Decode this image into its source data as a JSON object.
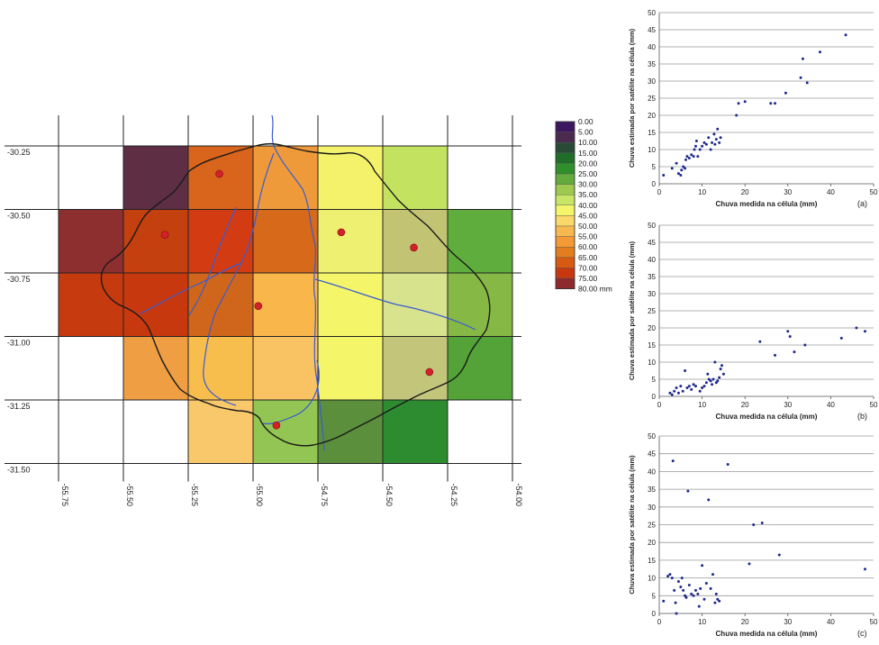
{
  "map": {
    "lat_ticks": [
      "-30.25",
      "-30.50",
      "-30.75",
      "-31.00",
      "-31.25",
      "-31.50"
    ],
    "lon_ticks": [
      "-55.75",
      "-55.50",
      "-55.25",
      "-55.00",
      "-54.75",
      "-54.50",
      "-54.25",
      "-54.00"
    ],
    "legend_values": [
      "0.00",
      "5.00",
      "10.00",
      "15.00",
      "20.00",
      "25.00",
      "30.00",
      "35.00",
      "40.00",
      "45.00",
      "50.00",
      "55.00",
      "60.00",
      "65.00",
      "70.00",
      "75.00",
      "80.00"
    ],
    "legend_unit": "mm",
    "legend_colors": [
      "#3d1660",
      "#4a2a4e",
      "#2a4a38",
      "#1f6e28",
      "#2f8f2a",
      "#62ab3c",
      "#9cc94e",
      "#c9e566",
      "#f5f56a",
      "#fbd86a",
      "#f8b850",
      "#f39a37",
      "#e27e1e",
      "#d65a12",
      "#c8380f",
      "#8e2a2e",
      "#5e2a3c"
    ],
    "cells": [
      {
        "row": 0,
        "col": 1,
        "color": "#5e2f44"
      },
      {
        "row": 0,
        "col": 2,
        "color": "#d9641b"
      },
      {
        "row": 0,
        "col": 3,
        "color": "#ef9a3a"
      },
      {
        "row": 0,
        "col": 4,
        "color": "#f4f26a"
      },
      {
        "row": 0,
        "col": 5,
        "color": "#c3e25f"
      },
      {
        "row": 1,
        "col": 0,
        "color": "#8e2f2f"
      },
      {
        "row": 1,
        "col": 1,
        "color": "#c4400f"
      },
      {
        "row": 1,
        "col": 2,
        "color": "#d33c12"
      },
      {
        "row": 1,
        "col": 3,
        "color": "#d6691a"
      },
      {
        "row": 1,
        "col": 4,
        "color": "#eef072"
      },
      {
        "row": 1,
        "col": 5,
        "color": "#c3c473"
      },
      {
        "row": 1,
        "col": 6,
        "color": "#5fae3d"
      },
      {
        "row": 2,
        "col": 0,
        "color": "#c63a0f"
      },
      {
        "row": 2,
        "col": 1,
        "color": "#c8380f"
      },
      {
        "row": 2,
        "col": 2,
        "color": "#d0661b"
      },
      {
        "row": 2,
        "col": 3,
        "color": "#f8b64b"
      },
      {
        "row": 2,
        "col": 4,
        "color": "#f5f56a"
      },
      {
        "row": 2,
        "col": 5,
        "color": "#d8e38d"
      },
      {
        "row": 2,
        "col": 6,
        "color": "#86b845"
      },
      {
        "row": 3,
        "col": 1,
        "color": "#ef9e44"
      },
      {
        "row": 3,
        "col": 2,
        "color": "#f7bd4d"
      },
      {
        "row": 3,
        "col": 3,
        "color": "#f9c262"
      },
      {
        "row": 3,
        "col": 4,
        "color": "#f5f56a"
      },
      {
        "row": 3,
        "col": 5,
        "color": "#c3c67a"
      },
      {
        "row": 3,
        "col": 6,
        "color": "#53a338"
      },
      {
        "row": 4,
        "col": 2,
        "color": "#f9c86a"
      },
      {
        "row": 4,
        "col": 3,
        "color": "#92c553"
      },
      {
        "row": 4,
        "col": 4,
        "color": "#5b8f3c"
      },
      {
        "row": 4,
        "col": 5,
        "color": "#2d8c30"
      }
    ],
    "gauges": [
      {
        "lon": -55.13,
        "lat": -30.36
      },
      {
        "lon": -55.34,
        "lat": -30.6
      },
      {
        "lon": -54.66,
        "lat": -30.59
      },
      {
        "lon": -54.38,
        "lat": -30.65
      },
      {
        "lon": -54.98,
        "lat": -30.88
      },
      {
        "lon": -54.32,
        "lat": -31.14
      },
      {
        "lon": -54.91,
        "lat": -31.35
      }
    ]
  },
  "chart_data": [
    {
      "type": "scatter",
      "panel_label": "(a)",
      "xlabel": "Chuva medida na célula (mm)",
      "ylabel": "Chuva estimada por satélite na célula (mm)",
      "xlim": [
        0,
        50
      ],
      "ylim": [
        0,
        50
      ],
      "xticks": [
        "0",
        "10",
        "20",
        "30",
        "40",
        "50"
      ],
      "yticks": [
        "0",
        "5",
        "10",
        "15",
        "20",
        "25",
        "30",
        "35",
        "40",
        "45",
        "50"
      ],
      "points": [
        [
          1,
          2.5
        ],
        [
          3,
          4.5
        ],
        [
          4,
          6
        ],
        [
          4.5,
          3
        ],
        [
          5,
          2.5
        ],
        [
          5.2,
          4
        ],
        [
          5.6,
          5
        ],
        [
          6,
          4.5
        ],
        [
          6.2,
          7
        ],
        [
          6.5,
          8
        ],
        [
          7,
          7.5
        ],
        [
          7.5,
          8.5
        ],
        [
          8,
          8
        ],
        [
          8.2,
          10
        ],
        [
          8.5,
          11
        ],
        [
          8.7,
          12.5
        ],
        [
          9,
          8
        ],
        [
          9.5,
          10
        ],
        [
          10,
          11
        ],
        [
          10.5,
          12
        ],
        [
          11,
          11.5
        ],
        [
          11.5,
          13.5
        ],
        [
          12,
          10
        ],
        [
          12.3,
          12
        ],
        [
          12.8,
          14.5
        ],
        [
          13,
          11.5
        ],
        [
          13.3,
          13
        ],
        [
          13.6,
          16
        ],
        [
          14,
          12
        ],
        [
          14.3,
          13.5
        ],
        [
          18,
          20
        ],
        [
          18.5,
          23.5
        ],
        [
          20,
          24
        ],
        [
          26,
          23.5
        ],
        [
          27,
          23.5
        ],
        [
          29.5,
          26.5
        ],
        [
          33,
          31
        ],
        [
          33.5,
          36.5
        ],
        [
          34.5,
          29.5
        ],
        [
          37.5,
          38.5
        ],
        [
          43.5,
          43.5
        ]
      ]
    },
    {
      "type": "scatter",
      "panel_label": "(b)",
      "xlabel": "Chuva medida na célula (mm)",
      "ylabel": "Chuva estimada por satélite na célula (mm)",
      "xlim": [
        0,
        50
      ],
      "ylim": [
        0,
        50
      ],
      "xticks": [
        "0",
        "10",
        "20",
        "30",
        "40",
        "50"
      ],
      "yticks": [
        "0",
        "5",
        "10",
        "15",
        "20",
        "25",
        "30",
        "35",
        "40",
        "45",
        "50"
      ],
      "points": [
        [
          2.5,
          1
        ],
        [
          3,
          0.5
        ],
        [
          3.5,
          1.5
        ],
        [
          4,
          2.5
        ],
        [
          4.5,
          1
        ],
        [
          5,
          3
        ],
        [
          5.5,
          1.5
        ],
        [
          6,
          7.5
        ],
        [
          6.5,
          2.5
        ],
        [
          7,
          3
        ],
        [
          7.5,
          2
        ],
        [
          8,
          3.5
        ],
        [
          8.5,
          3
        ],
        [
          9.5,
          1.5
        ],
        [
          10,
          2.5
        ],
        [
          10.5,
          3
        ],
        [
          11,
          4
        ],
        [
          11.3,
          6.5
        ],
        [
          11.6,
          5
        ],
        [
          12,
          4.5
        ],
        [
          12.3,
          3.5
        ],
        [
          12.6,
          5
        ],
        [
          13,
          10
        ],
        [
          13.3,
          4
        ],
        [
          13.6,
          4.5
        ],
        [
          14,
          5.5
        ],
        [
          14.3,
          8
        ],
        [
          14.6,
          9
        ],
        [
          15,
          6.5
        ],
        [
          23.5,
          16
        ],
        [
          27,
          12
        ],
        [
          30,
          19
        ],
        [
          30.5,
          17.5
        ],
        [
          31.5,
          13
        ],
        [
          34,
          15
        ],
        [
          42.5,
          17
        ],
        [
          46,
          20
        ],
        [
          48,
          19
        ]
      ]
    },
    {
      "type": "scatter",
      "panel_label": "(c)",
      "xlabel": "Chuva medida na célula (mm)",
      "ylabel": "Chuva estimada por satélite na célula (mm)",
      "xlim": [
        0,
        50
      ],
      "ylim": [
        0,
        50
      ],
      "xticks": [
        "0",
        "10",
        "20",
        "30",
        "40",
        "50"
      ],
      "yticks": [
        "0",
        "5",
        "10",
        "15",
        "20",
        "25",
        "30",
        "35",
        "40",
        "45",
        "50"
      ],
      "points": [
        [
          1,
          3.5
        ],
        [
          2,
          10.5
        ],
        [
          2.5,
          11
        ],
        [
          3,
          10
        ],
        [
          3.2,
          43
        ],
        [
          3.5,
          6.5
        ],
        [
          3.8,
          3
        ],
        [
          4,
          0
        ],
        [
          4.5,
          9
        ],
        [
          5,
          7.5
        ],
        [
          5.3,
          10
        ],
        [
          5.6,
          6.5
        ],
        [
          6,
          5
        ],
        [
          6.3,
          4.5
        ],
        [
          6.7,
          34.5
        ],
        [
          7,
          8
        ],
        [
          7.5,
          5.5
        ],
        [
          8,
          5
        ],
        [
          8.5,
          6.5
        ],
        [
          9,
          5.5
        ],
        [
          9.3,
          2
        ],
        [
          9.6,
          7
        ],
        [
          10,
          13.5
        ],
        [
          10.5,
          4
        ],
        [
          11,
          8.5
        ],
        [
          11.5,
          32
        ],
        [
          12,
          7
        ],
        [
          12.5,
          11
        ],
        [
          13,
          3
        ],
        [
          13.3,
          5.5
        ],
        [
          13.6,
          4
        ],
        [
          14,
          3.5
        ],
        [
          16,
          42
        ],
        [
          21,
          14
        ],
        [
          22,
          25
        ],
        [
          24,
          25.5
        ],
        [
          28,
          16.5
        ],
        [
          48,
          12.5
        ]
      ]
    }
  ]
}
